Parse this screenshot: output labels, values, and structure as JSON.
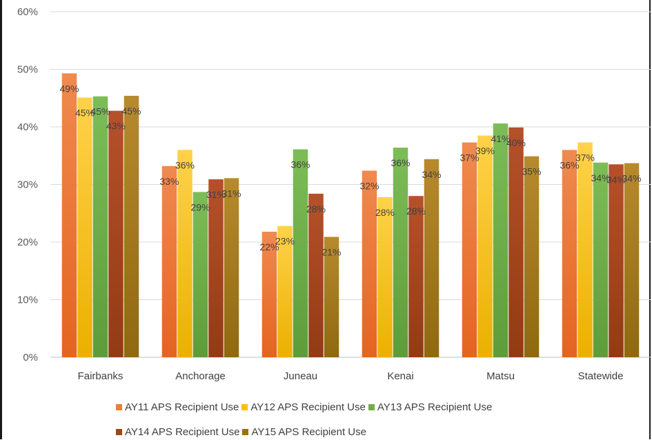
{
  "chart_data": {
    "type": "bar",
    "categories": [
      "Fairbanks",
      "Anchorage",
      "Juneau",
      "Kenai",
      "Matsu",
      "Statewide"
    ],
    "series": [
      {
        "name": "AY11 APS Recipient Use",
        "values": [
          49.3,
          33.2,
          21.8,
          32.4,
          37.3,
          36.0
        ],
        "labels": [
          "49%",
          "33%",
          "22%",
          "32%",
          "37%",
          "36%"
        ],
        "color_top": "#f08a4f",
        "color_bottom": "#e46420",
        "color": "#ed7d31"
      },
      {
        "name": "AY12 APS Recipient Use",
        "values": [
          45.1,
          36.0,
          22.8,
          27.8,
          38.5,
          37.3
        ],
        "labels": [
          "45%",
          "36%",
          "23%",
          "28%",
          "39%",
          "37%"
        ],
        "color_top": "#ffd24a",
        "color_bottom": "#ebb000",
        "color": "#ffc000"
      },
      {
        "name": "AY13 APS Recipient Use",
        "values": [
          45.3,
          28.7,
          36.1,
          36.4,
          40.6,
          33.8
        ],
        "labels": [
          "45%",
          "29%",
          "36%",
          "36%",
          "41%",
          "34%"
        ],
        "color_top": "#7dbd57",
        "color_bottom": "#5e9c3a",
        "color": "#70ad47"
      },
      {
        "name": "AY14 APS Recipient Use",
        "values": [
          42.8,
          30.9,
          28.4,
          28.0,
          39.9,
          33.5
        ],
        "labels": [
          "43%",
          "31%",
          "28%",
          "28%",
          "40%",
          "34%"
        ],
        "color_top": "#b5512a",
        "color_bottom": "#923b13",
        "color": "#9e480e"
      },
      {
        "name": "AY15 APS Recipient Use",
        "values": [
          45.4,
          31.1,
          20.9,
          34.4,
          34.9,
          33.7
        ],
        "labels": [
          "45%",
          "31%",
          "21%",
          "34%",
          "35%",
          "34%"
        ],
        "color_top": "#b88a2e",
        "color_bottom": "#8f6810",
        "color": "#997300"
      }
    ],
    "yticks": [
      "0%",
      "10%",
      "20%",
      "30%",
      "40%",
      "50%",
      "60%"
    ],
    "ylim": [
      0,
      60
    ],
    "grid": true,
    "legend_position": "bottom"
  }
}
